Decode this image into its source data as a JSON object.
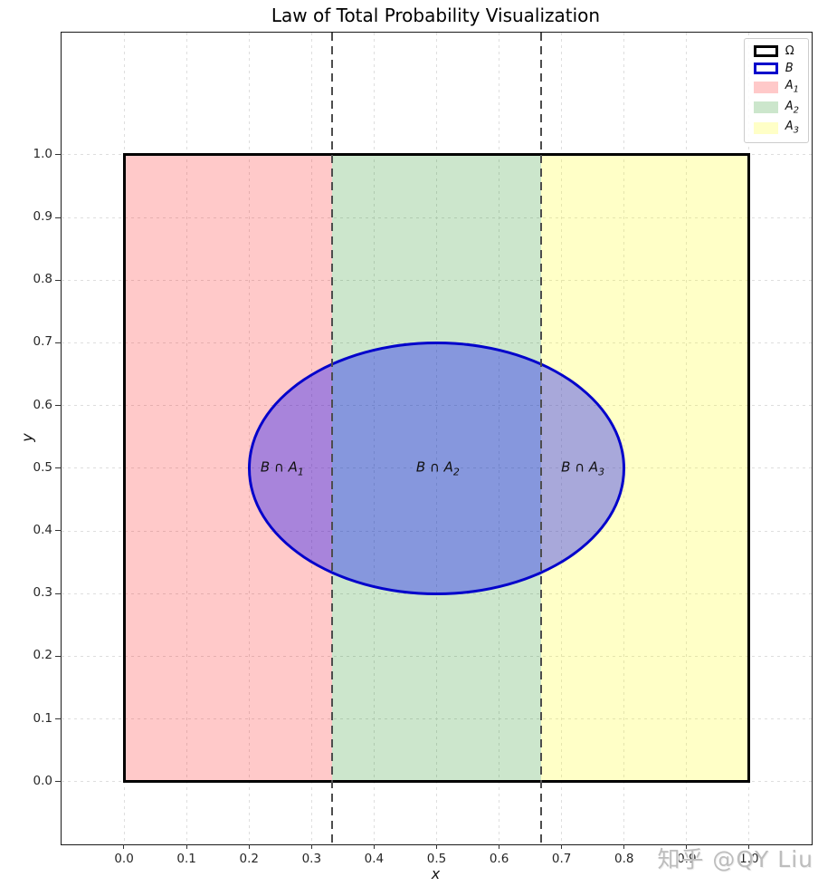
{
  "chart_data": {
    "type": "diagram",
    "title": "Law of Total Probability Visualization",
    "xlabel": "x",
    "ylabel": "y",
    "xlim": [
      -0.1,
      1.1
    ],
    "ylim": [
      -0.1,
      1.195
    ],
    "grid": {
      "visible": true,
      "color": "#dedede",
      "style": "dashed"
    },
    "xtick_labels": [
      "0.0",
      "0.1",
      "0.2",
      "0.3",
      "0.4",
      "0.5",
      "0.6",
      "0.7",
      "0.8",
      "0.9",
      "1.0"
    ],
    "ytick_labels": [
      "0.0",
      "0.1",
      "0.2",
      "0.3",
      "0.4",
      "0.5",
      "0.6",
      "0.7",
      "0.8",
      "0.9",
      "1.0"
    ],
    "sample_space": {
      "label": "Ω",
      "x0": 0,
      "y0": 0,
      "x1": 1,
      "y1": 1,
      "edge_color": "#000000"
    },
    "partitions": [
      {
        "label": "A",
        "sub": "1",
        "x0": 0,
        "x1": 0.3333,
        "fill": "rgba(255,0,0,0.21)"
      },
      {
        "label": "A",
        "sub": "2",
        "x0": 0.3333,
        "x1": 0.6667,
        "fill": "rgba(0,128,0,0.20)"
      },
      {
        "label": "A",
        "sub": "3",
        "x0": 0.6667,
        "x1": 1,
        "fill": "rgba(255,255,0,0.22)"
      }
    ],
    "partition_boundaries": {
      "xs": [
        0.3333,
        0.6667
      ],
      "color": "#4d4d4d",
      "style": "dashed"
    },
    "event_B": {
      "label": "B",
      "cx": 0.5,
      "cy": 0.5,
      "rx": 0.3,
      "ry": 0.2,
      "fill": "rgba(0,0,255,0.34)",
      "edge_color": "#0202cb"
    },
    "region_labels": [
      {
        "base": "B ∩ A",
        "sub": "1",
        "x": 0.253,
        "y": 0.5
      },
      {
        "base": "B ∩ A",
        "sub": "2",
        "x": 0.502,
        "y": 0.5
      },
      {
        "base": "B ∩ A",
        "sub": "3",
        "x": 0.734,
        "y": 0.5
      }
    ],
    "legend": {
      "position": "upper right",
      "entries": [
        {
          "label": "Ω",
          "sub": "",
          "italic": false,
          "swatch": "outline",
          "color": "#000000"
        },
        {
          "label": "B",
          "sub": "",
          "italic": true,
          "swatch": "outline",
          "color": "#0202cb"
        },
        {
          "label": "A",
          "sub": "1",
          "italic": true,
          "swatch": "fill",
          "color": "rgba(255,0,0,0.21)"
        },
        {
          "label": "A",
          "sub": "2",
          "italic": true,
          "swatch": "fill",
          "color": "rgba(0,128,0,0.20)"
        },
        {
          "label": "A",
          "sub": "3",
          "italic": true,
          "swatch": "fill",
          "color": "rgba(255,255,0,0.22)"
        }
      ]
    },
    "watermark": {
      "text": "知乎 @QY Liu",
      "color": "#bdbdbd"
    }
  }
}
